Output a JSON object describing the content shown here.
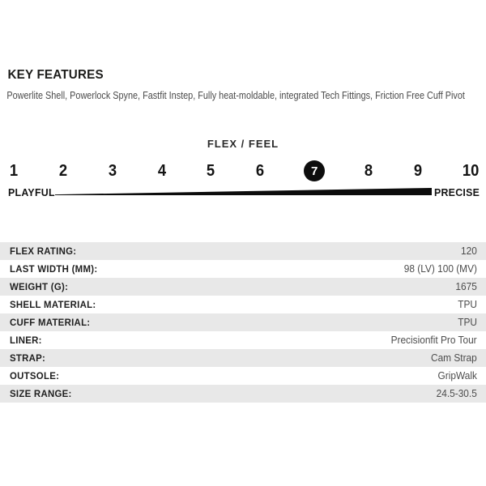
{
  "key_features": {
    "title": "KEY FEATURES",
    "description": "Powerlite Shell, Powerlock Spyne, Fastfit Instep, Fully heat-moldable, integrated Tech Fittings, Friction Free Cuff Pivot"
  },
  "flex_feel": {
    "title": "FLEX / FEEL",
    "scale": [
      "1",
      "2",
      "3",
      "4",
      "5",
      "6",
      "7",
      "8",
      "9",
      "10"
    ],
    "selected_value": "7",
    "left_label": "PLAYFUL",
    "right_label": "PRECISE"
  },
  "specs": [
    {
      "label": "FLEX RATING:",
      "value": "120"
    },
    {
      "label": "LAST WIDTH (MM):",
      "value": "98 (LV) 100 (MV)"
    },
    {
      "label": "WEIGHT (G):",
      "value": "1675"
    },
    {
      "label": "SHELL MATERIAL:",
      "value": "TPU"
    },
    {
      "label": "CUFF MATERIAL:",
      "value": "TPU"
    },
    {
      "label": "LINER:",
      "value": "Precisionfit Pro Tour"
    },
    {
      "label": "STRAP:",
      "value": "Cam Strap"
    },
    {
      "label": "OUTSOLE:",
      "value": "GripWalk"
    },
    {
      "label": "SIZE RANGE:",
      "value": "24.5-30.5"
    }
  ],
  "colors": {
    "ink": "#0d0d0d",
    "body_text": "#4b4b4b",
    "row_alt_bg": "#e8e8e8"
  }
}
